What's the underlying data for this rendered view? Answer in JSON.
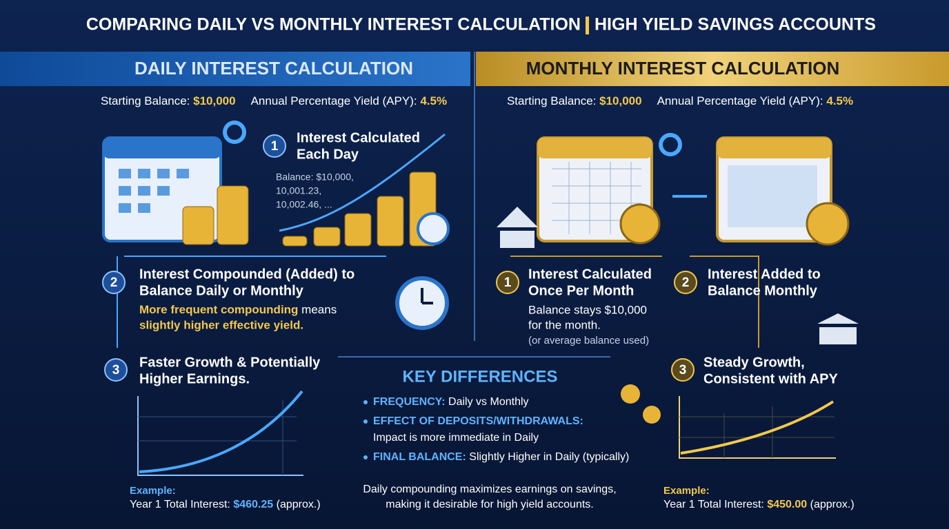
{
  "title": {
    "left": "COMPARING DAILY VS MONTHLY INTEREST CALCULATION",
    "right": "HIGH YIELD SAVINGS ACCOUNTS"
  },
  "daily": {
    "header": "DAILY INTEREST CALCULATION",
    "balance_label": "Starting Balance:",
    "balance": "$10,000",
    "apy_label": "Annual Percentage Yield (APY):",
    "apy": "4.5%",
    "steps": [
      {
        "number": "1",
        "title": [
          "Interest Calculated",
          "Each Day"
        ],
        "detail": [
          "Balance: $10,000,",
          "10,001.23,",
          "10,002.46, ..."
        ]
      },
      {
        "number": "2",
        "title": [
          "Interest Compounded (Added) to",
          "Balance Daily or Monthly"
        ],
        "note": {
          "highlight": "More frequent compounding",
          "text": "means",
          "highlight2": "slightly higher effective yield."
        }
      },
      {
        "number": "3",
        "title": [
          "Faster Growth & Potentially",
          "Higher Earnings."
        ]
      }
    ],
    "example": {
      "label": "Example:",
      "text": "Year 1 Total Interest:",
      "amount": "$460.25",
      "suffix": "(approx.)"
    }
  },
  "monthly": {
    "header": "MONTHLY INTEREST CALCULATION",
    "balance_label": "Starting Balance:",
    "balance": "$10,000",
    "apy_label": "Annual Percentage Yield (APY):",
    "apy": "4.5%",
    "steps": [
      {
        "number": "1",
        "title": [
          "Interest Calculated",
          "Once Per Month"
        ],
        "detail": [
          "Balance stays $10,000",
          "for the month.",
          "(or average balance used)"
        ]
      },
      {
        "number": "2",
        "title": [
          "Interest Added to",
          "Balance Monthly"
        ]
      },
      {
        "number": "3",
        "title": [
          "Steady Growth,",
          "Consistent with APY"
        ]
      }
    ],
    "example": {
      "label": "Example:",
      "text": "Year 1 Total Interest:",
      "amount": "$450.00",
      "suffix": "(approx.)"
    }
  },
  "key_differences": {
    "title": "KEY DIFFERENCES",
    "items": [
      {
        "label": "FREQUENCY:",
        "text": "Daily vs Monthly"
      },
      {
        "label": "EFFECT OF DEPOSITS/WITHDRAWALS:",
        "text": "Impact is more immediate in Daily"
      },
      {
        "label": "FINAL BALANCE:",
        "text": "Slightly Higher in Daily (typically)"
      }
    ],
    "footer": [
      "Daily compounding maximizes earnings on savings,",
      "making it desirable for high yield accounts."
    ]
  }
}
